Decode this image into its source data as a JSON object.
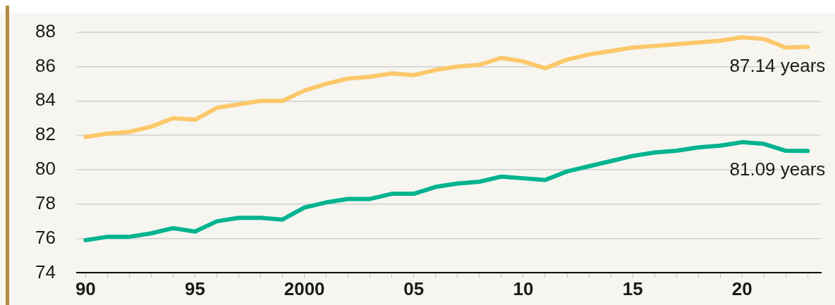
{
  "chart_data": {
    "type": "line",
    "x": [
      1990,
      1991,
      1992,
      1993,
      1994,
      1995,
      1996,
      1997,
      1998,
      1999,
      2000,
      2001,
      2002,
      2003,
      2004,
      2005,
      2006,
      2007,
      2008,
      2009,
      2010,
      2011,
      2012,
      2013,
      2014,
      2015,
      2016,
      2017,
      2018,
      2019,
      2020,
      2021,
      2022,
      2023
    ],
    "series": [
      {
        "color": "#fcc86a",
        "values": [
          81.9,
          82.1,
          82.2,
          82.5,
          83.0,
          82.9,
          83.6,
          83.8,
          84.0,
          84.0,
          84.6,
          85.0,
          85.3,
          85.4,
          85.6,
          85.5,
          85.8,
          86.0,
          86.1,
          86.5,
          86.3,
          85.9,
          86.4,
          86.7,
          86.9,
          87.1,
          87.2,
          87.3,
          87.4,
          87.5,
          87.7,
          87.6,
          87.1,
          87.14
        ]
      },
      {
        "color": "#00b48f",
        "values": [
          75.9,
          76.1,
          76.1,
          76.3,
          76.6,
          76.4,
          77.0,
          77.2,
          77.2,
          77.1,
          77.8,
          78.1,
          78.3,
          78.3,
          78.6,
          78.6,
          79.0,
          79.2,
          79.3,
          79.6,
          79.5,
          79.4,
          79.9,
          80.2,
          80.5,
          80.8,
          81.0,
          81.1,
          81.3,
          81.4,
          81.6,
          81.5,
          81.1,
          81.09
        ]
      }
    ],
    "annotations": [
      {
        "text": "87.14 years",
        "x": 2023,
        "y": 87.14
      },
      {
        "text": "81.09 years",
        "x": 2023,
        "y": 81.09
      }
    ],
    "xlim": [
      1989.6,
      2023.6
    ],
    "xticks": [
      {
        "value": 1990,
        "label": "90"
      },
      {
        "value": 1991,
        "label": null
      },
      {
        "value": 1992,
        "label": null
      },
      {
        "value": 1993,
        "label": null
      },
      {
        "value": 1994,
        "label": null
      },
      {
        "value": 1995,
        "label": "95"
      },
      {
        "value": 1996,
        "label": null
      },
      {
        "value": 1997,
        "label": null
      },
      {
        "value": 1998,
        "label": null
      },
      {
        "value": 1999,
        "label": null
      },
      {
        "value": 2000,
        "label": "2000"
      },
      {
        "value": 2001,
        "label": null
      },
      {
        "value": 2002,
        "label": null
      },
      {
        "value": 2003,
        "label": null
      },
      {
        "value": 2004,
        "label": null
      },
      {
        "value": 2005,
        "label": "05"
      },
      {
        "value": 2006,
        "label": null
      },
      {
        "value": 2007,
        "label": null
      },
      {
        "value": 2008,
        "label": null
      },
      {
        "value": 2009,
        "label": null
      },
      {
        "value": 2010,
        "label": "10"
      },
      {
        "value": 2011,
        "label": null
      },
      {
        "value": 2012,
        "label": null
      },
      {
        "value": 2013,
        "label": null
      },
      {
        "value": 2014,
        "label": null
      },
      {
        "value": 2015,
        "label": "15"
      },
      {
        "value": 2016,
        "label": null
      },
      {
        "value": 2017,
        "label": null
      },
      {
        "value": 2018,
        "label": null
      },
      {
        "value": 2019,
        "label": null
      },
      {
        "value": 2020,
        "label": "20"
      },
      {
        "value": 2021,
        "label": null
      },
      {
        "value": 2022,
        "label": null
      },
      {
        "value": 2023,
        "label": null
      }
    ],
    "ylim": [
      74,
      88
    ],
    "yticks": [
      74,
      76,
      78,
      80,
      82,
      84,
      86,
      88
    ],
    "grid": "y",
    "legend": false,
    "marker": "none",
    "line_style": "solid"
  }
}
